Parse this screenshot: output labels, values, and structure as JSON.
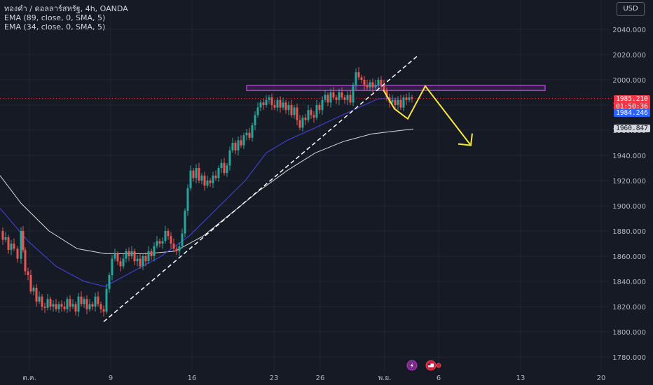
{
  "header": {
    "symbol": "ทองคำ / ดอลลาร์สหรัฐ, 4h, OANDA",
    "indicators": [
      "EMA (89, close, 0, SMA, 5)",
      "EMA (34, close, 0, SMA, 5)"
    ],
    "currency_label": "USD"
  },
  "price_labels": {
    "current_price": "1985.210",
    "countdown": "01:50:36",
    "ema_blue": "1984.246",
    "ema_white": "1960.847"
  },
  "colors": {
    "background": "#161a25",
    "grid": "#232733",
    "up": "#26a69a",
    "down": "#ef5350",
    "ema_blue": "#3f3fc9",
    "ema_white": "#d9d9d9",
    "zone": "#a63fc9",
    "arrow": "#f5e642",
    "price_line": "#f23645"
  },
  "chart_data": {
    "type": "candlestick",
    "y_ticks": [
      "2040.000",
      "2020.000",
      "2000.000",
      "1980.000",
      "1960.000",
      "1940.000",
      "1920.000",
      "1900.000",
      "1880.000",
      "1860.000",
      "1840.000",
      "1820.000",
      "1800.000",
      "1780.000"
    ],
    "ylim": [
      1775,
      2047
    ],
    "x_ticks": [
      "ต.ค.",
      "9",
      "16",
      "23",
      "26",
      "พ.ย.",
      "6",
      "13",
      "20"
    ],
    "current_price": 1985.21,
    "resistance_zone": [
      1991.5,
      1995.5
    ],
    "ema_34": [
      [
        0,
        1924
      ],
      [
        30,
        1902
      ],
      [
        70,
        1880
      ],
      [
        110,
        1866
      ],
      [
        150,
        1862
      ],
      [
        210,
        1862
      ],
      [
        250,
        1864
      ],
      [
        290,
        1876
      ],
      [
        330,
        1894
      ],
      [
        370,
        1912
      ],
      [
        410,
        1928
      ],
      [
        450,
        1942
      ],
      [
        490,
        1951
      ],
      [
        530,
        1957
      ],
      [
        560,
        1959
      ],
      [
        590,
        1961
      ]
    ],
    "ema_89": [
      [
        0,
        1898
      ],
      [
        40,
        1872
      ],
      [
        80,
        1852
      ],
      [
        120,
        1840
      ],
      [
        150,
        1836
      ],
      [
        190,
        1848
      ],
      [
        230,
        1860
      ],
      [
        270,
        1876
      ],
      [
        310,
        1898
      ],
      [
        350,
        1920
      ],
      [
        380,
        1942
      ],
      [
        410,
        1952
      ],
      [
        450,
        1962
      ],
      [
        500,
        1975
      ],
      [
        540,
        1985
      ],
      [
        570,
        1985
      ]
    ],
    "trendline": [
      [
        148,
        1808
      ],
      [
        596,
        2019
      ]
    ],
    "projection": [
      [
        547,
        1992
      ],
      [
        563,
        1977
      ],
      [
        582,
        1969
      ],
      [
        607,
        1995
      ],
      [
        672,
        1948
      ]
    ],
    "candles_path": [
      [
        1,
        1880
      ],
      [
        4,
        1873
      ],
      [
        8,
        1875
      ],
      [
        12,
        1865
      ],
      [
        16,
        1870
      ],
      [
        20,
        1866
      ],
      [
        25,
        1858
      ],
      [
        30,
        1880
      ],
      [
        33,
        1865
      ],
      [
        36,
        1848
      ],
      [
        40,
        1845
      ],
      [
        44,
        1832
      ],
      [
        48,
        1835
      ],
      [
        52,
        1824
      ],
      [
        56,
        1828
      ],
      [
        60,
        1820
      ],
      [
        64,
        1819
      ],
      [
        68,
        1826
      ],
      [
        72,
        1820
      ],
      [
        76,
        1822
      ],
      [
        80,
        1818
      ],
      [
        84,
        1822
      ],
      [
        88,
        1820
      ],
      [
        92,
        1818
      ],
      [
        96,
        1826
      ],
      [
        100,
        1820
      ],
      [
        104,
        1822
      ],
      [
        108,
        1816
      ],
      [
        112,
        1828
      ],
      [
        116,
        1822
      ],
      [
        120,
        1826
      ],
      [
        124,
        1818
      ],
      [
        128,
        1822
      ],
      [
        132,
        1820
      ],
      [
        136,
        1828
      ],
      [
        140,
        1822
      ],
      [
        144,
        1818
      ],
      [
        148,
        1816
      ],
      [
        152,
        1834
      ],
      [
        156,
        1845
      ],
      [
        160,
        1858
      ],
      [
        164,
        1862
      ],
      [
        168,
        1856
      ],
      [
        172,
        1852
      ],
      [
        176,
        1858
      ],
      [
        180,
        1864
      ],
      [
        184,
        1860
      ],
      [
        188,
        1864
      ],
      [
        192,
        1856
      ],
      [
        196,
        1858
      ],
      [
        200,
        1852
      ],
      [
        204,
        1860
      ],
      [
        208,
        1856
      ],
      [
        212,
        1864
      ],
      [
        216,
        1860
      ],
      [
        220,
        1868
      ],
      [
        224,
        1872
      ],
      [
        228,
        1870
      ],
      [
        232,
        1872
      ],
      [
        236,
        1880
      ],
      [
        240,
        1876
      ],
      [
        244,
        1870
      ],
      [
        248,
        1866
      ],
      [
        252,
        1864
      ],
      [
        256,
        1868
      ],
      [
        260,
        1878
      ],
      [
        264,
        1896
      ],
      [
        268,
        1914
      ],
      [
        272,
        1928
      ],
      [
        276,
        1922
      ],
      [
        280,
        1930
      ],
      [
        284,
        1920
      ],
      [
        288,
        1924
      ],
      [
        292,
        1916
      ],
      [
        296,
        1920
      ],
      [
        300,
        1918
      ],
      [
        304,
        1924
      ],
      [
        308,
        1922
      ],
      [
        312,
        1930
      ],
      [
        316,
        1934
      ],
      [
        320,
        1926
      ],
      [
        324,
        1932
      ],
      [
        328,
        1944
      ],
      [
        332,
        1950
      ],
      [
        336,
        1944
      ],
      [
        340,
        1952
      ],
      [
        344,
        1948
      ],
      [
        348,
        1956
      ],
      [
        352,
        1958
      ],
      [
        356,
        1954
      ],
      [
        360,
        1964
      ],
      [
        364,
        1972
      ],
      [
        368,
        1978
      ],
      [
        372,
        1982
      ],
      [
        376,
        1980
      ],
      [
        380,
        1984
      ],
      [
        384,
        1986
      ],
      [
        388,
        1980
      ],
      [
        392,
        1978
      ],
      [
        396,
        1984
      ],
      [
        400,
        1978
      ],
      [
        404,
        1982
      ],
      [
        408,
        1976
      ],
      [
        412,
        1980
      ],
      [
        416,
        1972
      ],
      [
        420,
        1978
      ],
      [
        424,
        1968
      ],
      [
        428,
        1962
      ],
      [
        432,
        1970
      ],
      [
        436,
        1968
      ],
      [
        440,
        1976
      ],
      [
        444,
        1972
      ],
      [
        448,
        1970
      ],
      [
        452,
        1980
      ],
      [
        456,
        1976
      ],
      [
        460,
        1984
      ],
      [
        464,
        1988
      ],
      [
        468,
        1982
      ],
      [
        472,
        1990
      ],
      [
        476,
        1986
      ],
      [
        480,
        1984
      ],
      [
        484,
        1990
      ],
      [
        488,
        1986
      ],
      [
        492,
        1984
      ],
      [
        496,
        1988
      ],
      [
        500,
        1982
      ],
      [
        504,
        1996
      ],
      [
        508,
        2006
      ],
      [
        512,
        2002
      ],
      [
        516,
        2000
      ],
      [
        520,
        1996
      ],
      [
        524,
        1994
      ],
      [
        528,
        1998
      ],
      [
        532,
        1994
      ],
      [
        536,
        1996
      ],
      [
        540,
        2000
      ],
      [
        544,
        1996
      ],
      [
        548,
        1992
      ],
      [
        552,
        1986
      ],
      [
        556,
        1982
      ],
      [
        560,
        1984
      ],
      [
        564,
        1980
      ],
      [
        568,
        1984
      ],
      [
        572,
        1978
      ],
      [
        576,
        1986
      ],
      [
        580,
        1984
      ],
      [
        584,
        1986
      ],
      [
        588,
        1985
      ]
    ]
  }
}
